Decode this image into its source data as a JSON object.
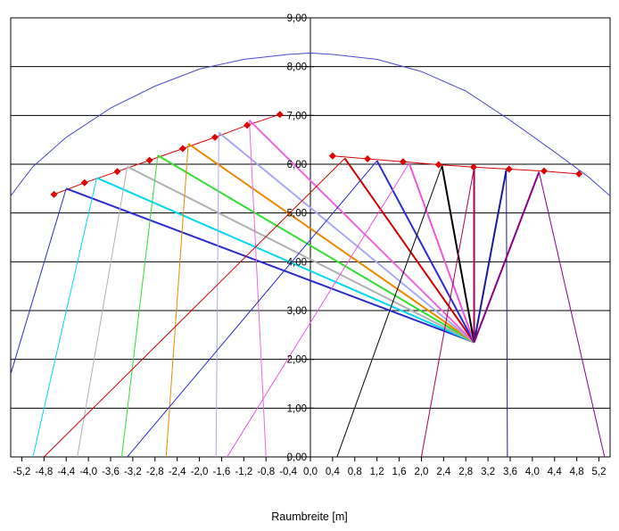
{
  "chart_data": {
    "type": "line",
    "title": "",
    "xlabel": "Raumbreite [m]",
    "ylabel": "",
    "xlim": [
      -5.4,
      5.4
    ],
    "ylim": [
      0,
      9
    ],
    "grid": "horizontal",
    "x_tick_labels": [
      "-5,2",
      "-4,8",
      "-4,4",
      "-4,0",
      "-3,6",
      "-3,2",
      "-2,8",
      "-2,4",
      "-2,0",
      "-1,6",
      "-1,2",
      "-0,8",
      "-0,4",
      "0,0",
      "0,4",
      "0,8",
      "1,2",
      "1,6",
      "2,0",
      "2,4",
      "2,8",
      "3,2",
      "3,6",
      "4,0",
      "4,4",
      "4,8",
      "5,2"
    ],
    "x_tick_values": [
      -5.2,
      -4.8,
      -4.4,
      -4.0,
      -3.6,
      -3.2,
      -2.8,
      -2.4,
      -2.0,
      -1.6,
      -1.2,
      -0.8,
      -0.4,
      0.0,
      0.4,
      0.8,
      1.2,
      1.6,
      2.0,
      2.4,
      2.8,
      3.2,
      3.6,
      4.0,
      4.4,
      4.8,
      5.2
    ],
    "y_tick_labels": [
      "0,00",
      "1,00",
      "2,00",
      "3,00",
      "4,00",
      "5,00",
      "6,00",
      "7,00",
      "8,00",
      "9,00"
    ],
    "y_tick_values": [
      0,
      1,
      2,
      3,
      4,
      5,
      6,
      7,
      8,
      9
    ],
    "source_point": {
      "x": 2.95,
      "y": 2.35
    },
    "series": [
      {
        "type": "dome",
        "color": "#4a4acc",
        "points": [
          [
            -5.4,
            5.35
          ],
          [
            -5.0,
            5.95
          ],
          [
            -4.4,
            6.55
          ],
          [
            -3.6,
            7.15
          ],
          [
            -2.8,
            7.6
          ],
          [
            -2.0,
            7.95
          ],
          [
            -1.2,
            8.15
          ],
          [
            -0.4,
            8.25
          ],
          [
            0.0,
            8.28
          ],
          [
            0.4,
            8.25
          ],
          [
            1.2,
            8.15
          ],
          [
            2.0,
            7.9
          ],
          [
            2.8,
            7.5
          ],
          [
            3.6,
            6.9
          ],
          [
            4.4,
            6.25
          ],
          [
            5.0,
            5.75
          ],
          [
            5.4,
            5.35
          ]
        ]
      },
      {
        "type": "wall-left",
        "color": "#dd0000",
        "points": [
          [
            -4.62,
            5.38
          ],
          [
            -4.07,
            5.62
          ],
          [
            -3.48,
            5.85
          ],
          [
            -2.9,
            6.08
          ],
          [
            -2.3,
            6.32
          ],
          [
            -1.72,
            6.55
          ],
          [
            -1.14,
            6.8
          ],
          [
            -0.55,
            7.02
          ]
        ]
      },
      {
        "type": "wall-right",
        "color": "#dd0000",
        "points": [
          [
            0.4,
            6.17
          ],
          [
            1.03,
            6.11
          ],
          [
            1.67,
            6.05
          ],
          [
            2.31,
            5.99
          ],
          [
            2.94,
            5.94
          ],
          [
            3.58,
            5.9
          ],
          [
            4.21,
            5.86
          ],
          [
            4.84,
            5.8
          ]
        ]
      },
      {
        "type": "rays",
        "rays": [
          {
            "color": "#2a2ad0",
            "wall": [
              -4.4,
              5.5
            ],
            "floor": [
              -5.4,
              1.7
            ]
          },
          {
            "color": "#00d8f0",
            "wall": [
              -3.85,
              5.72
            ],
            "floor": [
              -5.0,
              0.0
            ]
          },
          {
            "color": "#b0b0b0",
            "wall": [
              -3.3,
              5.95
            ],
            "floor": [
              -4.2,
              0.0
            ]
          },
          {
            "color": "#33dd33",
            "wall": [
              -2.75,
              6.18
            ],
            "floor": [
              -3.4,
              0.0
            ]
          },
          {
            "color": "#ee8800",
            "wall": [
              -2.2,
              6.42
            ],
            "floor": [
              -2.6,
              0.0
            ]
          },
          {
            "color": "#a7a7f4",
            "wall": [
              -1.65,
              6.65
            ],
            "floor": [
              -1.7,
              0.0
            ]
          },
          {
            "color": "#ee66dd",
            "wall": [
              -1.1,
              6.9
            ],
            "floor": [
              -0.8,
              0.0
            ]
          },
          {
            "color": "#cc0000",
            "wall": [
              0.62,
              6.12
            ],
            "floor": [
              -4.8,
              0.0
            ]
          },
          {
            "color": "#2a2ad0",
            "wall": [
              1.2,
              6.07
            ],
            "floor": [
              -3.3,
              0.0
            ]
          },
          {
            "color": "#ee55dd",
            "wall": [
              1.78,
              6.02
            ],
            "floor": [
              -1.5,
              0.0
            ]
          },
          {
            "color": "#000000",
            "wall": [
              2.37,
              5.97
            ],
            "floor": [
              0.48,
              0.0
            ]
          },
          {
            "color": "#aa0055",
            "wall": [
              2.95,
              5.93
            ],
            "floor": [
              2.0,
              0.0
            ]
          },
          {
            "color": "#1a1a99",
            "wall": [
              3.53,
              5.88
            ],
            "floor": [
              3.55,
              0.0
            ]
          },
          {
            "color": "#880088",
            "wall": [
              4.12,
              5.84
            ],
            "floor": [
              5.3,
              0.0
            ]
          }
        ]
      }
    ]
  }
}
